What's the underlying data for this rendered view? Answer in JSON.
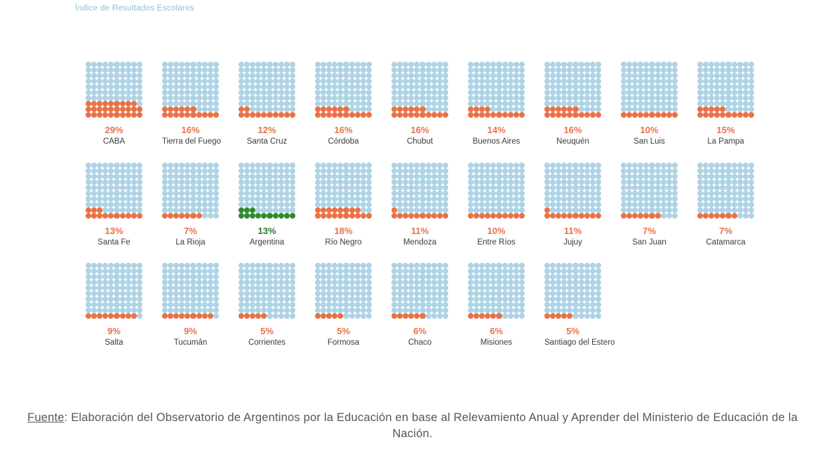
{
  "title": "Índice de Resultados Escolares",
  "footer": {
    "fuente_label": "Fuente",
    "rest": ": Elaboración del Observatorio de Argentinos por la Educación en base al Relevamiento Anual y Aprender del Ministerio de Educación de la Nación."
  },
  "colors": {
    "empty_dot": "#aed3e4",
    "filled_dot": "#eb7044",
    "highlight_dot": "#2e8b2e",
    "percent_label": "#e8714a",
    "highlight_percent_label": "#2c7a2c",
    "region_label": "#3b3b3b",
    "title_text": "#8fbfd1",
    "footer_text": "#54565b",
    "background": "#ffffff"
  },
  "chart_data": {
    "type": "waffle",
    "title": "Índice de Resultados Escolares",
    "unit": "percent (dots filled out of 100)",
    "grid": {
      "rows": 10,
      "cols": 10,
      "fill_order": "bottom-left, row by row"
    },
    "highlight_series": "Argentina",
    "groups": [
      [
        {
          "name": "CABA",
          "value": 29,
          "label": "29%",
          "highlight": false
        },
        {
          "name": "Tierra del Fuego",
          "value": 16,
          "label": "16%",
          "highlight": false
        },
        {
          "name": "Santa Cruz",
          "value": 12,
          "label": "12%",
          "highlight": false
        },
        {
          "name": "Córdoba",
          "value": 16,
          "label": "16%",
          "highlight": false
        },
        {
          "name": "Chubut",
          "value": 16,
          "label": "16%",
          "highlight": false
        },
        {
          "name": "Buenos Aires",
          "value": 14,
          "label": "14%",
          "highlight": false
        },
        {
          "name": "Neuquén",
          "value": 16,
          "label": "16%",
          "highlight": false
        },
        {
          "name": "San Luis",
          "value": 10,
          "label": "10%",
          "highlight": false
        },
        {
          "name": "La Pampa",
          "value": 15,
          "label": "15%",
          "highlight": false
        }
      ],
      [
        {
          "name": "Santa Fe",
          "value": 13,
          "label": "13%",
          "highlight": false
        },
        {
          "name": "La Rioja",
          "value": 7,
          "label": "7%",
          "highlight": false
        },
        {
          "name": "Argentina",
          "value": 13,
          "label": "13%",
          "highlight": true
        },
        {
          "name": "Río Negro",
          "value": 18,
          "label": "18%",
          "highlight": false
        },
        {
          "name": "Mendoza",
          "value": 11,
          "label": "11%",
          "highlight": false
        },
        {
          "name": "Entre Ríos",
          "value": 10,
          "label": "10%",
          "highlight": false
        },
        {
          "name": "Jujuy",
          "value": 11,
          "label": "11%",
          "highlight": false
        },
        {
          "name": "San Juan",
          "value": 7,
          "label": "7%",
          "highlight": false
        },
        {
          "name": "Catamarca",
          "value": 7,
          "label": "7%",
          "highlight": false
        }
      ],
      [
        {
          "name": "Salta",
          "value": 9,
          "label": "9%",
          "highlight": false
        },
        {
          "name": "Tucumán",
          "value": 9,
          "label": "9%",
          "highlight": false
        },
        {
          "name": "Corrientes",
          "value": 5,
          "label": "5%",
          "highlight": false
        },
        {
          "name": "Formosa",
          "value": 5,
          "label": "5%",
          "highlight": false
        },
        {
          "name": "Chaco",
          "value": 6,
          "label": "6%",
          "highlight": false
        },
        {
          "name": "Misiones",
          "value": 6,
          "label": "6%",
          "highlight": false
        },
        {
          "name": "Santiago del Estero",
          "value": 5,
          "label": "5%",
          "highlight": false
        }
      ]
    ]
  }
}
